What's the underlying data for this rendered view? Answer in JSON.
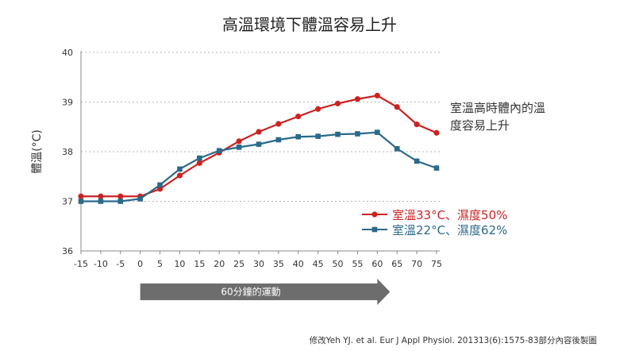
{
  "chart_data": {
    "type": "line",
    "title": "高溫環境下體溫容易上升",
    "ylabel": "體溫(°C)",
    "xlabel": "",
    "x": [
      -15,
      -10,
      -5,
      0,
      5,
      10,
      15,
      20,
      25,
      30,
      35,
      40,
      45,
      50,
      55,
      60,
      65,
      70,
      75
    ],
    "ylim": [
      36,
      40
    ],
    "yticks": [
      36,
      37,
      38,
      39,
      40
    ],
    "grid": true,
    "series": [
      {
        "name": "室溫33°C、濕度50%",
        "color": "#cc2222",
        "marker": "circle",
        "values": [
          37.1,
          37.1,
          37.1,
          37.1,
          37.25,
          37.52,
          37.77,
          37.98,
          38.21,
          38.4,
          38.56,
          38.71,
          38.86,
          38.97,
          39.06,
          39.13,
          38.9,
          38.55,
          38.38
        ]
      },
      {
        "name": "室溫22°C、濕度62%",
        "color": "#2a6a8a",
        "marker": "square",
        "values": [
          37.0,
          37.0,
          37.0,
          37.05,
          37.33,
          37.65,
          37.87,
          38.02,
          38.09,
          38.15,
          38.24,
          38.3,
          38.31,
          38.35,
          38.36,
          38.39,
          38.06,
          37.81,
          37.67
        ]
      }
    ],
    "legend_position": "right",
    "annotation": "室溫高時體內的溫度容易上升",
    "exercise_band": {
      "label": "60分鐘的運動",
      "start": 0,
      "end": 60
    }
  },
  "citation": "修改Yeh YJ. et al. Eur J Appl Physiol. 201313(6):1575-83部分內容後製圖",
  "colors": {
    "arrow": "#6d6d6d",
    "grid": "#b5b5b5",
    "axis": "#888888"
  }
}
